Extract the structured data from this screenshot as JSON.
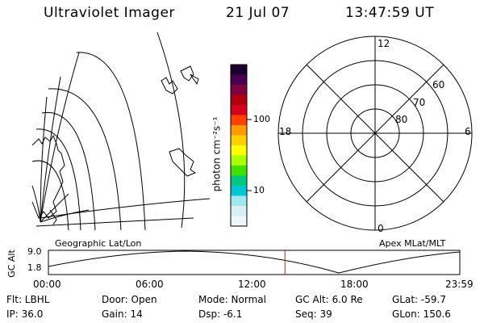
{
  "header": {
    "title": "Ultraviolet Imager",
    "date": "21 Jul 07",
    "time": "13:47:59 UT"
  },
  "colorbar": {
    "label": "photon cm⁻²s⁻¹",
    "ticks": [
      "100",
      "10"
    ],
    "colors": [
      "#1b0030",
      "#4a0050",
      "#800040",
      "#b00010",
      "#d8001a",
      "#ff4000",
      "#ff9900",
      "#ffd000",
      "#ffff00",
      "#a8ff00",
      "#40e000",
      "#00c880",
      "#00c8d8",
      "#a0e8f0",
      "#d8f0f4",
      "#eef6f8"
    ]
  },
  "polar": {
    "mlt_labels": {
      "top": "12",
      "left": "18",
      "right": "6",
      "bottom": "0"
    },
    "lat_labels": [
      "60",
      "70",
      "80"
    ]
  },
  "map_labels": {
    "left": "Geographic Lat/Lon",
    "right": "Apex MLat/MLT"
  },
  "altitude_plot": {
    "ylabel": "GC Alt",
    "yticks": [
      "9.0",
      "1.8"
    ],
    "xticks": [
      "00:00",
      "06:00",
      "12:00",
      "18:00",
      "23:59"
    ],
    "marker_time_hours": 13.8,
    "marker_color": "#ff0000"
  },
  "info": {
    "filter": "Flt: LBHL",
    "door": "Door: Open",
    "mode": "Mode: Normal",
    "gc_alt": "GC Alt: 6.0 Re",
    "glat": "GLat: -59.7",
    "ip": "IP: 36.0",
    "gain": "Gain: 14",
    "dsp": "Dsp:  -6.1",
    "seq": "Seq: 39",
    "glon": "GLon: 150.6"
  }
}
